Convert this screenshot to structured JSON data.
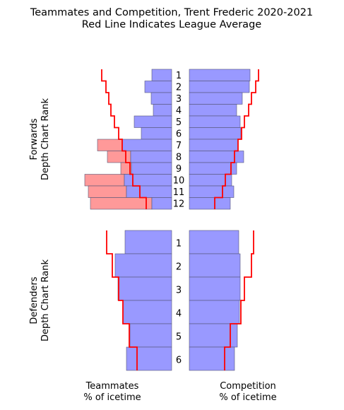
{
  "chart_data": {
    "type": "bar",
    "title": "Teammates and Competition, Trent Frederic 2020-2021",
    "subtitle": "Red Line Indicates League Average",
    "forwards": {
      "ylabel": "Forwards\nDepth Chart Rank",
      "ranks": [
        "1",
        "2",
        "3",
        "4",
        "5",
        "6",
        "7",
        "8",
        "9",
        "10",
        "11",
        "12"
      ],
      "teammates_blue": [
        0.28,
        0.38,
        0.29,
        0.26,
        0.53,
        0.43,
        0.7,
        0.58,
        0.57,
        0.67,
        0.64,
        0.28
      ],
      "teammates_excess": [
        0,
        0,
        0,
        0,
        0,
        0,
        0.35,
        0.33,
        0.15,
        0.56,
        0.54,
        0.87
      ],
      "teammates_league": [
        0.99,
        0.93,
        0.89,
        0.86,
        0.81,
        0.75,
        0.7,
        0.65,
        0.59,
        0.55,
        0.45,
        0.36
      ],
      "competition": [
        0.86,
        0.85,
        0.75,
        0.67,
        0.72,
        0.73,
        0.69,
        0.77,
        0.67,
        0.6,
        0.63,
        0.58
      ],
      "competition_league": [
        0.98,
        0.94,
        0.88,
        0.84,
        0.78,
        0.74,
        0.69,
        0.64,
        0.59,
        0.51,
        0.47,
        0.36
      ]
    },
    "defenders": {
      "ylabel": "Defenders\nDepth Chart Rank",
      "ranks": [
        "1",
        "2",
        "3",
        "4",
        "5",
        "6"
      ],
      "teammates_blue": [
        0.66,
        0.8,
        0.76,
        0.69,
        0.59,
        0.64
      ],
      "teammates_excess": [
        0,
        0,
        0,
        0,
        0,
        0
      ],
      "teammates_league": [
        0.92,
        0.84,
        0.75,
        0.69,
        0.6,
        0.49
      ],
      "competition": [
        0.7,
        0.72,
        0.72,
        0.71,
        0.68,
        0.64
      ],
      "competition_league": [
        0.91,
        0.88,
        0.78,
        0.73,
        0.58,
        0.5
      ]
    },
    "xlabel_left": "Teammates\n% of icetime",
    "xlabel_right": "Competition\n% of icetime",
    "grid": false,
    "colors": {
      "blue_fill": "#9999ff",
      "red_fill": "#ff9999",
      "bar_edge": "#555577",
      "league_line": "#ff0000"
    }
  }
}
